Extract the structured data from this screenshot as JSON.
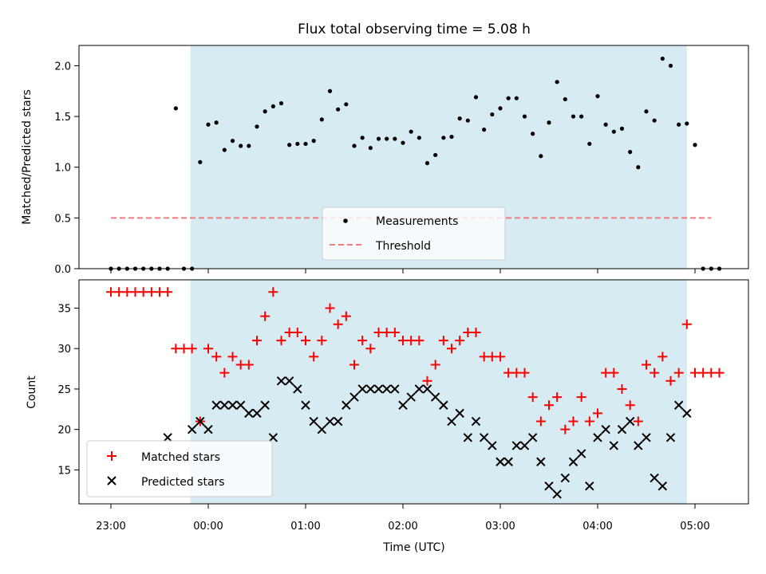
{
  "chart_data": [
    {
      "type": "scatter",
      "title": "Flux total observing time = 5.08 h",
      "xlabel": "",
      "ylabel": "Matched/Predicted stars",
      "ylim": [
        0,
        2.2
      ],
      "yticks": [
        "0.0",
        "0.5",
        "1.0",
        "1.5",
        "2.0"
      ],
      "shaded_interval": {
        "start": "23:49",
        "end": "04:55",
        "color": "#add8e6"
      },
      "legend_position": "lower center",
      "series": [
        {
          "name": "Measurements",
          "kind": "scatter",
          "marker": "dot",
          "color": "#000000",
          "x": [
            "23:00",
            "23:05",
            "23:10",
            "23:15",
            "23:20",
            "23:25",
            "23:30",
            "23:35",
            "23:40",
            "23:45",
            "23:50",
            "23:55",
            "24:00",
            "24:05",
            "24:10",
            "24:15",
            "24:20",
            "24:25",
            "24:30",
            "24:35",
            "24:40",
            "24:45",
            "24:50",
            "24:55",
            "25:00",
            "25:05",
            "25:10",
            "25:15",
            "25:20",
            "25:25",
            "25:30",
            "25:35",
            "25:40",
            "25:45",
            "25:50",
            "25:55",
            "26:00",
            "26:05",
            "26:10",
            "26:15",
            "26:20",
            "26:25",
            "26:30",
            "26:35",
            "26:40",
            "26:45",
            "26:50",
            "26:55",
            "27:00",
            "27:05",
            "27:10",
            "27:15",
            "27:20",
            "27:25",
            "27:30",
            "27:35",
            "27:40",
            "27:45",
            "27:50",
            "27:55",
            "28:00",
            "28:05",
            "28:10",
            "28:15",
            "28:20",
            "28:25",
            "28:30",
            "28:35",
            "28:40",
            "28:45",
            "28:50",
            "28:55",
            "29:00",
            "29:05",
            "29:10",
            "29:15"
          ],
          "y": [
            0,
            0,
            0,
            0,
            0,
            0,
            0,
            0,
            1.58,
            0,
            0,
            1.05,
            1.42,
            1.44,
            1.17,
            1.26,
            1.21,
            1.21,
            1.4,
            1.55,
            1.6,
            1.63,
            1.22,
            1.23,
            1.23,
            1.26,
            1.47,
            1.75,
            1.57,
            1.62,
            1.21,
            1.29,
            1.19,
            1.28,
            1.28,
            1.28,
            1.24,
            1.35,
            1.29,
            1.04,
            1.12,
            1.29,
            1.3,
            1.48,
            1.46,
            1.69,
            1.37,
            1.52,
            1.58,
            1.68,
            1.68,
            1.5,
            1.33,
            1.11,
            1.44,
            1.84,
            1.67,
            1.5,
            1.5,
            1.23,
            1.7,
            1.42,
            1.35,
            1.38,
            1.15,
            1.0,
            1.55,
            1.46,
            2.07,
            2.0,
            1.42,
            1.43,
            1.22,
            0,
            0,
            0
          ]
        },
        {
          "name": "Threshold",
          "kind": "line",
          "style": "dashed",
          "color": "#f07c7c",
          "x": [
            "23:00",
            "29:10"
          ],
          "y": [
            0.5,
            0.5
          ]
        }
      ]
    },
    {
      "type": "scatter",
      "title": "",
      "xlabel": "Time (UTC)",
      "ylabel": "Count",
      "ylim": [
        10.8,
        38.5
      ],
      "yticks": [
        "15",
        "20",
        "25",
        "30",
        "35"
      ],
      "xticks": [
        "23:00",
        "00:00",
        "01:00",
        "02:00",
        "03:00",
        "04:00",
        "05:00"
      ],
      "shaded_interval": {
        "start": "23:49",
        "end": "04:55",
        "color": "#add8e6"
      },
      "legend_position": "lower left",
      "series": [
        {
          "name": "Matched stars",
          "kind": "scatter",
          "marker": "plus",
          "color": "#ff0000",
          "x": [
            "23:00",
            "23:05",
            "23:10",
            "23:15",
            "23:20",
            "23:25",
            "23:30",
            "23:35",
            "23:40",
            "23:45",
            "23:50",
            "23:55",
            "24:00",
            "24:05",
            "24:10",
            "24:15",
            "24:20",
            "24:25",
            "24:30",
            "24:35",
            "24:40",
            "24:45",
            "24:50",
            "24:55",
            "25:00",
            "25:05",
            "25:10",
            "25:15",
            "25:20",
            "25:25",
            "25:30",
            "25:35",
            "25:40",
            "25:45",
            "25:50",
            "25:55",
            "26:00",
            "26:05",
            "26:10",
            "26:15",
            "26:20",
            "26:25",
            "26:30",
            "26:35",
            "26:40",
            "26:45",
            "26:50",
            "26:55",
            "27:00",
            "27:05",
            "27:10",
            "27:15",
            "27:20",
            "27:25",
            "27:30",
            "27:35",
            "27:40",
            "27:45",
            "27:50",
            "27:55",
            "28:00",
            "28:05",
            "28:10",
            "28:15",
            "28:20",
            "28:25",
            "28:30",
            "28:35",
            "28:40",
            "28:45",
            "28:50",
            "28:55",
            "29:00",
            "29:05",
            "29:10",
            "29:15"
          ],
          "y": [
            37,
            37,
            37,
            37,
            37,
            37,
            37,
            37,
            30,
            30,
            30,
            21,
            30,
            29,
            27,
            29,
            28,
            28,
            31,
            34,
            37,
            31,
            32,
            32,
            31,
            29,
            31,
            35,
            33,
            34,
            28,
            31,
            30,
            32,
            32,
            32,
            31,
            31,
            31,
            26,
            28,
            31,
            30,
            31,
            32,
            32,
            29,
            29,
            29,
            27,
            27,
            27,
            24,
            21,
            23,
            24,
            20,
            21,
            24,
            21,
            22,
            27,
            27,
            25,
            23,
            21,
            28,
            27,
            29,
            26,
            27,
            33,
            27,
            27,
            27,
            27
          ]
        },
        {
          "name": "Predicted stars",
          "kind": "scatter",
          "marker": "x",
          "color": "#000000",
          "x": [
            "23:35",
            "23:50",
            "23:55",
            "24:00",
            "24:05",
            "24:10",
            "24:15",
            "24:20",
            "24:25",
            "24:30",
            "24:35",
            "24:40",
            "24:45",
            "24:50",
            "24:55",
            "25:00",
            "25:05",
            "25:10",
            "25:15",
            "25:20",
            "25:25",
            "25:30",
            "25:35",
            "25:40",
            "25:45",
            "25:50",
            "25:55",
            "26:00",
            "26:05",
            "26:10",
            "26:15",
            "26:20",
            "26:25",
            "26:30",
            "26:35",
            "26:40",
            "26:45",
            "26:50",
            "26:55",
            "27:00",
            "27:05",
            "27:10",
            "27:15",
            "27:20",
            "27:25",
            "27:30",
            "27:35",
            "27:40",
            "27:45",
            "27:50",
            "27:55",
            "28:00",
            "28:05",
            "28:10",
            "28:15",
            "28:20",
            "28:25",
            "28:30",
            "28:35",
            "28:40",
            "28:45",
            "28:50",
            "28:55"
          ],
          "y": [
            19,
            20,
            21,
            20,
            23,
            23,
            23,
            23,
            22,
            22,
            23,
            19,
            26,
            26,
            25,
            23,
            21,
            20,
            21,
            21,
            23,
            24,
            25,
            25,
            25,
            25,
            25,
            23,
            24,
            25,
            25,
            24,
            23,
            21,
            22,
            19,
            21,
            19,
            18,
            16,
            16,
            18,
            18,
            19,
            16,
            13,
            12,
            14,
            16,
            17,
            13,
            19,
            20,
            18,
            20,
            21,
            18,
            19,
            14,
            13,
            19,
            23,
            22
          ]
        }
      ]
    }
  ]
}
